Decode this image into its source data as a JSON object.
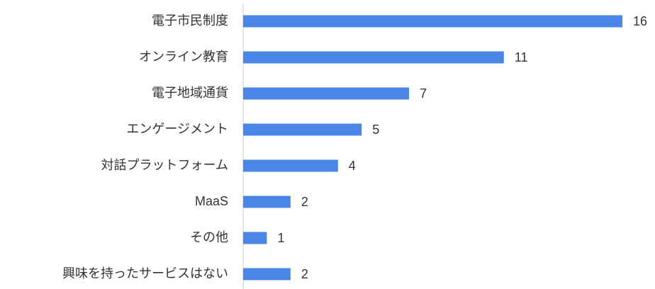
{
  "chart_data": {
    "type": "bar",
    "orientation": "horizontal",
    "categories": [
      "電子市民制度",
      "オンライン教育",
      "電子地域通貨",
      "エンゲージメント",
      "対話プラットフォーム",
      "MaaS",
      "その他",
      "興味を持ったサービスはない"
    ],
    "values": [
      16,
      11,
      7,
      5,
      4,
      2,
      1,
      2
    ],
    "color": "#4a86e8"
  }
}
